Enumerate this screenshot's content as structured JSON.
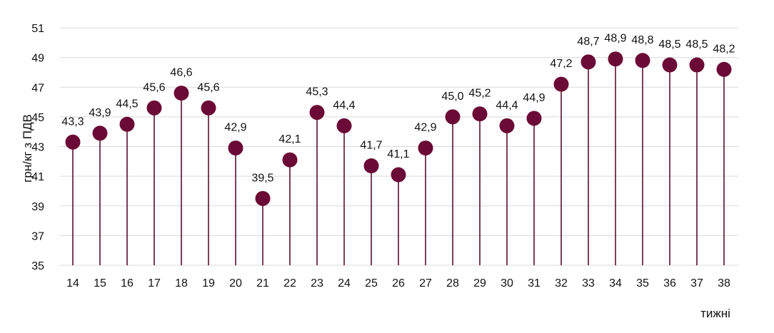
{
  "chart_data": {
    "type": "scatter",
    "style": "lollipop",
    "title": "",
    "xlabel": "тижні",
    "ylabel": "грн/кг з ПДВ",
    "ylim": [
      35,
      51
    ],
    "yticks": [
      "35",
      "37",
      "39",
      "41",
      "43",
      "45",
      "47",
      "49",
      "51"
    ],
    "grid": true,
    "legend": "none",
    "marker_color": "#6b0a36",
    "stem_color": "#5a0f2e",
    "grid_color": "#d9d9d9",
    "categories": [
      "14",
      "15",
      "16",
      "17",
      "18",
      "19",
      "20",
      "21",
      "22",
      "23",
      "24",
      "25",
      "26",
      "27",
      "28",
      "29",
      "30",
      "31",
      "32",
      "33",
      "34",
      "35",
      "36",
      "37",
      "38"
    ],
    "values": [
      43.3,
      43.9,
      44.5,
      45.6,
      46.6,
      45.6,
      42.9,
      39.5,
      42.1,
      45.3,
      44.4,
      41.7,
      41.1,
      42.9,
      45.0,
      45.2,
      44.4,
      44.9,
      47.2,
      48.7,
      48.9,
      48.8,
      48.5,
      48.5,
      48.2
    ],
    "labels": [
      "43,3",
      "43,9",
      "44,5",
      "45,6",
      "46,6",
      "45,6",
      "42,9",
      "39,5",
      "42,1",
      "45,3",
      "44,4",
      "41,7",
      "41,1",
      "42,9",
      "45,0",
      "45,2",
      "44,4",
      "44,9",
      "47,2",
      "48,7",
      "48,9",
      "48,8",
      "48,5",
      "48,5",
      "48,2"
    ]
  }
}
